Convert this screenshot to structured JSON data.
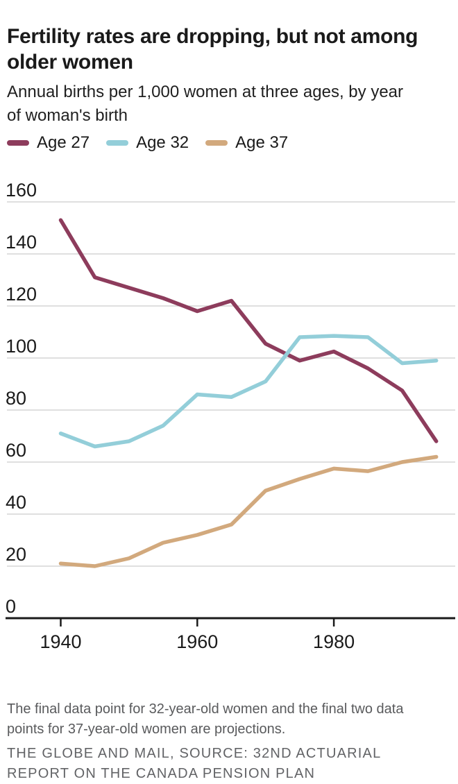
{
  "header": {
    "title": "Fertility rates are dropping, but not among older women",
    "subtitle": "Annual births per 1,000 women at three ages, by year of woman's birth"
  },
  "legend": [
    {
      "label": "Age 27",
      "color": "#8d3c5c"
    },
    {
      "label": "Age 32",
      "color": "#93ced9"
    },
    {
      "label": "Age 37",
      "color": "#d2a97d"
    }
  ],
  "chart_data": {
    "type": "line",
    "title": "Fertility rates are dropping, but not among older women",
    "subtitle": "Annual births per 1,000 women at three ages, by year of woman's birth",
    "x_label": "year of woman's birth",
    "y_label": "Annual births per 1,000 women",
    "x": [
      1940,
      1945,
      1950,
      1955,
      1960,
      1965,
      1970,
      1975,
      1980,
      1985,
      1990,
      1995
    ],
    "series": [
      {
        "name": "Age 27",
        "color": "#8d3c5c",
        "values": [
          153,
          131,
          127,
          123,
          118,
          122,
          105.5,
          99,
          102.5,
          96,
          87.5,
          68
        ]
      },
      {
        "name": "Age 32",
        "color": "#93ced9",
        "values": [
          71,
          66,
          68,
          74,
          86,
          85,
          91,
          108,
          108.5,
          108,
          98,
          99
        ]
      },
      {
        "name": "Age 37",
        "color": "#d2a97d",
        "values": [
          21,
          20,
          23,
          29,
          32,
          36,
          49,
          53.5,
          57.5,
          56.5,
          60,
          62
        ]
      }
    ],
    "ylim": [
      0,
      160
    ],
    "yticks": [
      0,
      20,
      40,
      60,
      80,
      100,
      120,
      140,
      160
    ],
    "xticks": [
      1940,
      1960,
      1980
    ],
    "grid": true,
    "legend_position": "top",
    "grid_color": "#cccccc",
    "axis_color": "#1a1a1a"
  },
  "footnote": "The final data point for 32-year-old women and the final two data points for 37-year-old women are projections.",
  "source": "THE GLOBE AND MAIL, SOURCE: 32ND ACTUARIAL REPORT ON THE CANADA PENSION PLAN"
}
